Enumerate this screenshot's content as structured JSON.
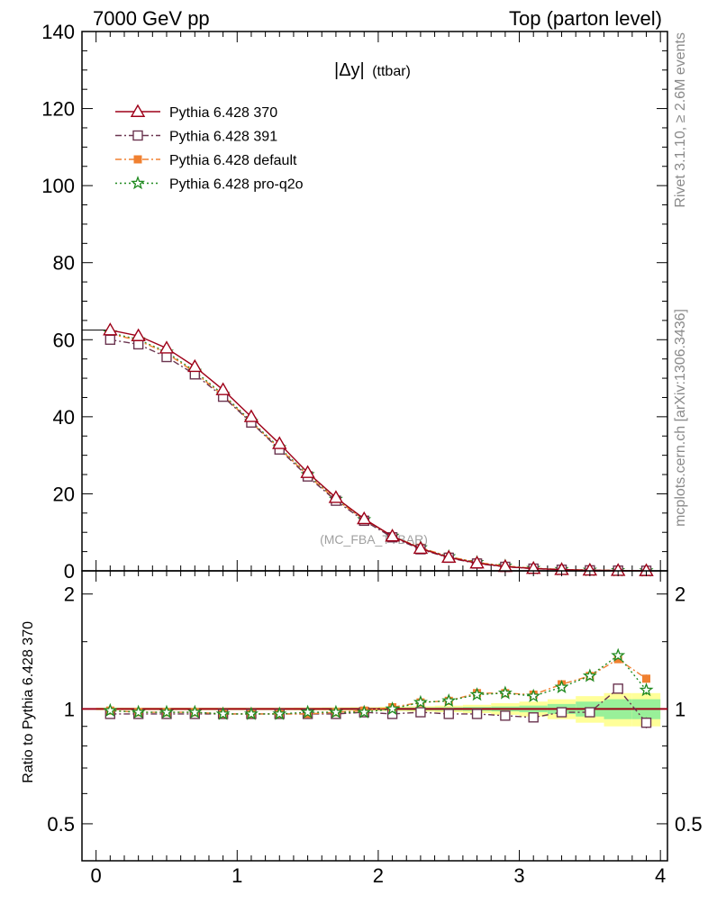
{
  "header": {
    "left": "7000 GeV pp",
    "right": "Top (parton level)"
  },
  "side": {
    "rivet": "Rivet 3.1.10, ≥ 2.6M events",
    "mcplots": "mcplots.cern.ch [arXiv:1306.3436]"
  },
  "watermark": "(MC_FBA_TTBAR)",
  "plot_title": {
    "main": "|Δy|",
    "sub": "(ttbar)"
  },
  "ratio_ylabel": "Ratio to Pythia 6.428 370",
  "chart_data": [
    {
      "type": "line",
      "title": "|Δy| (ttbar)",
      "xlim": [
        -0.1,
        4.05
      ],
      "ylim": [
        0,
        140
      ],
      "grid": false,
      "legend_position": "top-left",
      "xticks": [
        0,
        1,
        2,
        3,
        4
      ],
      "yticks": [
        0,
        20,
        40,
        60,
        80,
        100,
        120,
        140
      ],
      "ytick_labels": [
        "0",
        "20",
        "40",
        "60",
        "80",
        "100",
        "120",
        "140"
      ],
      "x": [
        0.1,
        0.3,
        0.5,
        0.7,
        0.9,
        1.1,
        1.3,
        1.5,
        1.7,
        1.9,
        2.1,
        2.3,
        2.5,
        2.7,
        2.9,
        3.1,
        3.3,
        3.5,
        3.7,
        3.9
      ],
      "series": [
        {
          "name": "Pythia 6.428 370",
          "color": "#9e0018",
          "marker": "triangle-open",
          "dash": "",
          "values": [
            62.5,
            61.0,
            57.8,
            53.0,
            47.0,
            40.0,
            33.0,
            25.5,
            19.0,
            13.5,
            9.0,
            5.8,
            3.5,
            2.0,
            1.1,
            0.6,
            0.3,
            0.15,
            0.07,
            0.03
          ]
        },
        {
          "name": "Pythia 6.428 391",
          "color": "#6b3550",
          "marker": "square-open",
          "dash": "7,3,2,3",
          "values": [
            60.0,
            58.8,
            55.5,
            51.0,
            45.2,
            38.5,
            31.5,
            24.5,
            18.2,
            13.0,
            8.7,
            5.6,
            3.4,
            1.9,
            1.05,
            0.58,
            0.29,
            0.14,
            0.07,
            0.03
          ]
        },
        {
          "name": "Pythia 6.428 default",
          "color": "#f08030",
          "marker": "square-filled",
          "dash": "7,3,2,3",
          "values": [
            61.5,
            59.8,
            56.5,
            51.5,
            45.5,
            38.5,
            31.8,
            24.8,
            18.5,
            13.3,
            9.0,
            6.0,
            3.7,
            2.2,
            1.25,
            0.68,
            0.36,
            0.19,
            0.1,
            0.04
          ]
        },
        {
          "name": "Pythia 6.428 pro-q2o",
          "color": "#1f8a1f",
          "marker": "star",
          "dash": "2,3",
          "values": [
            61.8,
            60.0,
            56.8,
            51.8,
            45.8,
            38.8,
            32.0,
            25.0,
            18.6,
            13.3,
            9.0,
            6.0,
            3.7,
            2.2,
            1.25,
            0.66,
            0.35,
            0.19,
            0.1,
            0.04
          ]
        }
      ]
    },
    {
      "type": "line",
      "ylabel": "Ratio to Pythia 6.428 370",
      "xlim": [
        -0.1,
        4.05
      ],
      "ylim": [
        0.4,
        2.3
      ],
      "yscale": "log",
      "grid": false,
      "xticks": [
        0,
        1,
        2,
        3,
        4
      ],
      "xtick_labels": [
        "0",
        "1",
        "2",
        "3",
        "4"
      ],
      "yticks": [
        0.5,
        1,
        2
      ],
      "ytick_labels": [
        "0.5",
        "1",
        "2"
      ],
      "reference_line": 1,
      "x": [
        0.1,
        0.3,
        0.5,
        0.7,
        0.9,
        1.1,
        1.3,
        1.5,
        1.7,
        1.9,
        2.1,
        2.3,
        2.5,
        2.7,
        2.9,
        3.1,
        3.3,
        3.5,
        3.7,
        3.9
      ],
      "band_inner": [
        0.005,
        0.005,
        0.005,
        0.005,
        0.005,
        0.005,
        0.005,
        0.005,
        0.006,
        0.007,
        0.008,
        0.009,
        0.01,
        0.012,
        0.015,
        0.02,
        0.03,
        0.045,
        0.06,
        0.06
      ],
      "band_outer": [
        0.008,
        0.008,
        0.008,
        0.008,
        0.008,
        0.008,
        0.008,
        0.009,
        0.01,
        0.011,
        0.013,
        0.016,
        0.02,
        0.025,
        0.035,
        0.045,
        0.06,
        0.08,
        0.1,
        0.1
      ],
      "series": [
        {
          "name": "Pythia 6.428 391",
          "color": "#6b3550",
          "marker": "square-open",
          "dash": "7,3,2,3",
          "values": [
            0.97,
            0.97,
            0.97,
            0.97,
            0.97,
            0.97,
            0.97,
            0.97,
            0.97,
            0.98,
            0.97,
            0.98,
            0.97,
            0.97,
            0.96,
            0.95,
            0.98,
            0.98,
            1.13,
            0.92
          ],
          "errors": [
            0,
            0,
            0,
            0,
            0,
            0,
            0,
            0,
            0,
            0,
            0,
            0,
            0,
            0,
            0,
            0,
            0,
            0,
            0.02,
            0.03
          ]
        },
        {
          "name": "Pythia 6.428 default",
          "color": "#f08030",
          "marker": "square-filled",
          "dash": "7,3,2,3",
          "values": [
            0.99,
            0.98,
            0.98,
            0.98,
            0.97,
            0.97,
            0.97,
            0.97,
            0.98,
            0.99,
            1.01,
            1.04,
            1.05,
            1.1,
            1.1,
            1.09,
            1.16,
            1.22,
            1.35,
            1.2
          ],
          "errors": [
            0,
            0,
            0,
            0,
            0,
            0,
            0,
            0,
            0,
            0,
            0,
            0,
            0,
            0,
            0,
            0,
            0,
            0,
            0.03,
            0.03
          ]
        },
        {
          "name": "Pythia 6.428 pro-q2o",
          "color": "#1f8a1f",
          "marker": "star",
          "dash": "2,3",
          "values": [
            0.99,
            0.98,
            0.98,
            0.98,
            0.97,
            0.97,
            0.97,
            0.98,
            0.98,
            0.98,
            1.0,
            1.04,
            1.05,
            1.09,
            1.1,
            1.08,
            1.14,
            1.22,
            1.38,
            1.12
          ],
          "errors": [
            0,
            0,
            0,
            0,
            0,
            0,
            0,
            0,
            0,
            0,
            0,
            0,
            0,
            0,
            0,
            0,
            0,
            0,
            0.03,
            0.03
          ]
        }
      ]
    }
  ]
}
